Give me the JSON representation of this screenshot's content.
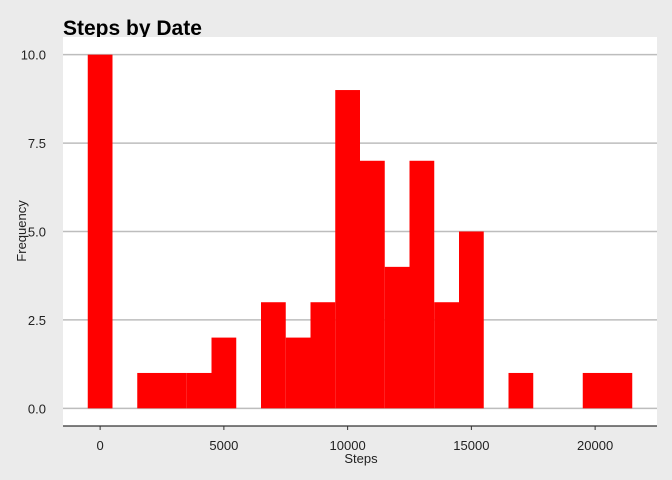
{
  "chart_data": {
    "type": "bar",
    "title": "Steps by Date",
    "xlabel": "Steps",
    "ylabel": "Frequency",
    "bin_width": 1000,
    "bins": [
      {
        "start": -500,
        "end": 500,
        "count": 10
      },
      {
        "start": 1500,
        "end": 2500,
        "count": 1
      },
      {
        "start": 2500,
        "end": 3500,
        "count": 1
      },
      {
        "start": 3500,
        "end": 4500,
        "count": 1
      },
      {
        "start": 4500,
        "end": 5500,
        "count": 2
      },
      {
        "start": 6500,
        "end": 7500,
        "count": 3
      },
      {
        "start": 7500,
        "end": 8500,
        "count": 2
      },
      {
        "start": 8500,
        "end": 9500,
        "count": 3
      },
      {
        "start": 9500,
        "end": 10500,
        "count": 9
      },
      {
        "start": 10500,
        "end": 11500,
        "count": 7
      },
      {
        "start": 11500,
        "end": 12500,
        "count": 4
      },
      {
        "start": 12500,
        "end": 13500,
        "count": 7
      },
      {
        "start": 13500,
        "end": 14500,
        "count": 3
      },
      {
        "start": 14500,
        "end": 15500,
        "count": 5
      },
      {
        "start": 16500,
        "end": 17500,
        "count": 1
      },
      {
        "start": 19500,
        "end": 20500,
        "count": 1
      },
      {
        "start": 20500,
        "end": 21500,
        "count": 1
      }
    ],
    "xlim": [
      -1500,
      22500
    ],
    "ylim": [
      -0.5,
      10.5
    ],
    "x_ticks": [
      0,
      5000,
      10000,
      15000,
      20000
    ],
    "x_tick_labels": [
      "0",
      "5000",
      "10000",
      "15000",
      "20000"
    ],
    "y_ticks": [
      0,
      2.5,
      5,
      7.5,
      10
    ],
    "y_tick_labels": [
      "0.0",
      "2.5",
      "5.0",
      "7.5",
      "10.0"
    ],
    "bar_color": "#ff0000",
    "grid": "horizontal",
    "panel_color": "#ffffff",
    "background_color": "#ebebeb",
    "gridline_color": "#bdbdbd",
    "legend": "none"
  }
}
